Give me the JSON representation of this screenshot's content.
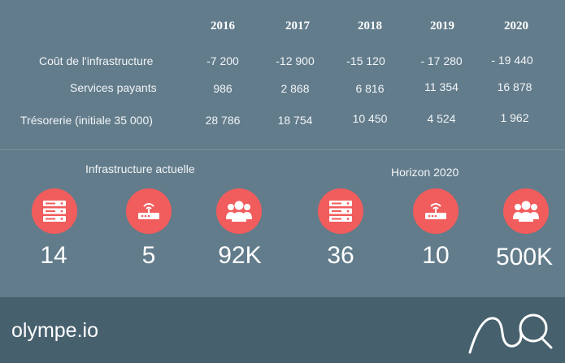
{
  "table": {
    "years": [
      "2016",
      "2017",
      "2018",
      "2019",
      "2020"
    ],
    "rows": [
      {
        "label": "Coût de l'infrastructure",
        "values": [
          "-7 200",
          "-12 900",
          "-15 120",
          "- 17 280",
          "- 19 440"
        ]
      },
      {
        "label": "Services payants",
        "values": [
          "986",
          "2 868",
          "6 816",
          "11 354",
          "16 878"
        ]
      },
      {
        "label": "Trésorerie  (initiale 35 000)",
        "values": [
          "28 786",
          "18 754",
          "10 450",
          "4 524",
          "1 962"
        ]
      }
    ]
  },
  "groups": [
    {
      "title": "Infrastructure actuelle",
      "stats": [
        {
          "icon": "server-icon",
          "value": "14"
        },
        {
          "icon": "router-icon",
          "value": "5"
        },
        {
          "icon": "users-icon",
          "value": "92K"
        }
      ]
    },
    {
      "title": "Horizon 2020",
      "stats": [
        {
          "icon": "server-icon",
          "value": "36"
        },
        {
          "icon": "router-icon",
          "value": "10"
        },
        {
          "icon": "users-icon",
          "value": "500K"
        }
      ]
    }
  ],
  "footer": {
    "brand": "olympe.io",
    "logo_icon": "olympe-logo-icon"
  },
  "colors": {
    "background": "#627c8b",
    "footer": "#47606e",
    "accent": "#f15c5c",
    "text": "#ffffff"
  }
}
